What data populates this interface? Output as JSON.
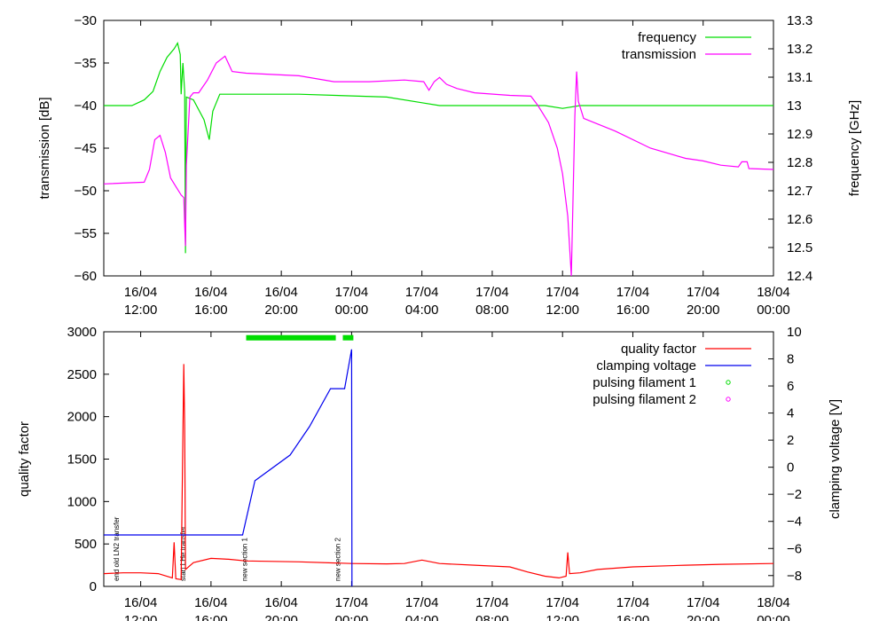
{
  "chart_data": [
    {
      "type": "line",
      "x_ticks": [
        {
          "t": 11,
          "label": [
            "16/04",
            "12:00"
          ]
        },
        {
          "t": 15,
          "label": [
            "16/04",
            "16:00"
          ]
        },
        {
          "t": 19,
          "label": [
            "16/04",
            "20:00"
          ]
        },
        {
          "t": 23,
          "label": [
            "17/04",
            "00:00"
          ]
        },
        {
          "t": 27,
          "label": [
            "17/04",
            "04:00"
          ]
        },
        {
          "t": 31,
          "label": [
            "17/04",
            "08:00"
          ]
        },
        {
          "t": 35,
          "label": [
            "17/04",
            "12:00"
          ]
        },
        {
          "t": 39,
          "label": [
            "17/04",
            "16:00"
          ]
        },
        {
          "t": 43,
          "label": [
            "17/04",
            "20:00"
          ]
        },
        {
          "t": 47,
          "label": [
            "18/04",
            "00:00"
          ]
        }
      ],
      "xlim": [
        8.9,
        47
      ],
      "ylabel": "transmission [dB]",
      "ylim": [
        -60,
        -30
      ],
      "yticks": [
        -30,
        -35,
        -40,
        -45,
        -50,
        -55,
        -60
      ],
      "y2label": "frequency [GHz]",
      "y2lim": [
        12.4,
        13.3
      ],
      "y2ticks": [
        "13.3",
        "13.2",
        "13.1",
        "13",
        "12.9",
        "12.8",
        "12.7",
        "12.6",
        "12.5",
        "12.4"
      ],
      "legend": "top-right",
      "series": [
        {
          "name": "frequency",
          "axis": "y2",
          "color": "#00dd00",
          "points": [
            [
              8.9,
              13.0
            ],
            [
              10.5,
              13.0
            ],
            [
              11.2,
              13.02
            ],
            [
              11.7,
              13.05
            ],
            [
              12.1,
              13.12
            ],
            [
              12.5,
              13.17
            ],
            [
              12.9,
              13.2
            ],
            [
              13.1,
              13.22
            ],
            [
              13.25,
              13.18
            ],
            [
              13.3,
              13.04
            ],
            [
              13.4,
              13.15
            ],
            [
              13.5,
              13.05
            ],
            [
              13.55,
              12.48
            ],
            [
              13.6,
              13.03
            ],
            [
              14.0,
              13.02
            ],
            [
              14.6,
              12.95
            ],
            [
              14.9,
              12.88
            ],
            [
              15.1,
              12.98
            ],
            [
              15.5,
              13.04
            ],
            [
              16,
              13.04
            ],
            [
              20,
              13.04
            ],
            [
              25,
              13.03
            ],
            [
              27,
              13.01
            ],
            [
              28,
              13.0
            ],
            [
              30,
              13.0
            ],
            [
              32,
              13.0
            ],
            [
              34,
              13.0
            ],
            [
              35,
              12.99
            ],
            [
              36,
              13.0
            ],
            [
              40,
              13.0
            ],
            [
              47,
              13.0
            ]
          ]
        },
        {
          "name": "transmission",
          "axis": "y",
          "color": "#ff00ff",
          "points": [
            [
              8.9,
              -49.2
            ],
            [
              11.2,
              -49.0
            ],
            [
              11.5,
              -47.5
            ],
            [
              11.8,
              -44.0
            ],
            [
              12.1,
              -43.5
            ],
            [
              12.4,
              -45.5
            ],
            [
              12.7,
              -48.5
            ],
            [
              13.0,
              -49.5
            ],
            [
              13.3,
              -50.5
            ],
            [
              13.45,
              -50.8
            ],
            [
              13.5,
              -54
            ],
            [
              13.55,
              -56.5
            ],
            [
              13.6,
              -47
            ],
            [
              13.8,
              -39
            ],
            [
              14.0,
              -38.5
            ],
            [
              14.3,
              -38.5
            ],
            [
              14.8,
              -37
            ],
            [
              15.3,
              -35
            ],
            [
              15.8,
              -34.2
            ],
            [
              16.2,
              -36
            ],
            [
              17,
              -36.2
            ],
            [
              20,
              -36.5
            ],
            [
              22,
              -37.2
            ],
            [
              24,
              -37.2
            ],
            [
              26,
              -37.0
            ],
            [
              27.1,
              -37.2
            ],
            [
              27.4,
              -38.2
            ],
            [
              27.7,
              -37.2
            ],
            [
              28.0,
              -36.7
            ],
            [
              28.4,
              -37.5
            ],
            [
              29,
              -38
            ],
            [
              30,
              -38.5
            ],
            [
              32,
              -38.8
            ],
            [
              33.2,
              -38.9
            ],
            [
              33.6,
              -40
            ],
            [
              34.2,
              -42
            ],
            [
              34.7,
              -45
            ],
            [
              35.0,
              -48
            ],
            [
              35.3,
              -53
            ],
            [
              35.5,
              -60
            ],
            [
              35.7,
              -41.2
            ],
            [
              35.8,
              -36.0
            ],
            [
              35.9,
              -39.5
            ],
            [
              36.2,
              -41.5
            ],
            [
              38,
              -43
            ],
            [
              40,
              -45
            ],
            [
              42,
              -46.2
            ],
            [
              43,
              -46.5
            ],
            [
              44,
              -47.0
            ],
            [
              45,
              -47.2
            ],
            [
              45.2,
              -46.6
            ],
            [
              45.5,
              -46.6
            ],
            [
              45.6,
              -47.4
            ],
            [
              47,
              -47.5
            ]
          ]
        }
      ]
    },
    {
      "type": "line",
      "x_ticks": [
        {
          "t": 11,
          "label": [
            "16/04",
            "12:00"
          ]
        },
        {
          "t": 15,
          "label": [
            "16/04",
            "16:00"
          ]
        },
        {
          "t": 19,
          "label": [
            "16/04",
            "20:00"
          ]
        },
        {
          "t": 23,
          "label": [
            "17/04",
            "00:00"
          ]
        },
        {
          "t": 27,
          "label": [
            "17/04",
            "04:00"
          ]
        },
        {
          "t": 31,
          "label": [
            "17/04",
            "08:00"
          ]
        },
        {
          "t": 35,
          "label": [
            "17/04",
            "12:00"
          ]
        },
        {
          "t": 39,
          "label": [
            "17/04",
            "16:00"
          ]
        },
        {
          "t": 43,
          "label": [
            "17/04",
            "20:00"
          ]
        },
        {
          "t": 47,
          "label": [
            "18/04",
            "00:00"
          ]
        }
      ],
      "xlim": [
        8.9,
        47
      ],
      "ylabel": "quality factor",
      "ylim": [
        0,
        3000
      ],
      "yticks": [
        3000,
        2500,
        2000,
        1500,
        1000,
        500,
        0
      ],
      "y2label": "clamping voltage [V]",
      "y2lim": [
        -8.8,
        10
      ],
      "y2ticks": [
        10,
        8,
        6,
        4,
        2,
        0,
        -2,
        -4,
        -6,
        -8
      ],
      "legend": "top-right",
      "series": [
        {
          "name": "quality factor",
          "axis": "y",
          "color": "#ff0000",
          "points": [
            [
              8.9,
              150
            ],
            [
              10,
              160
            ],
            [
              11,
              160
            ],
            [
              12,
              150
            ],
            [
              12.8,
              100
            ],
            [
              12.9,
              520
            ],
            [
              13.0,
              90
            ],
            [
              13.3,
              80
            ],
            [
              13.45,
              2620
            ],
            [
              13.5,
              1900
            ],
            [
              13.55,
              200
            ],
            [
              14,
              280
            ],
            [
              15,
              330
            ],
            [
              16,
              320
            ],
            [
              17,
              300
            ],
            [
              20,
              290
            ],
            [
              23,
              270
            ],
            [
              25,
              265
            ],
            [
              26,
              270
            ],
            [
              27,
              310
            ],
            [
              28,
              270
            ],
            [
              30,
              250
            ],
            [
              32,
              230
            ],
            [
              33,
              170
            ],
            [
              34,
              120
            ],
            [
              34.8,
              100
            ],
            [
              35.2,
              120
            ],
            [
              35.3,
              400
            ],
            [
              35.4,
              150
            ],
            [
              36,
              160
            ],
            [
              37,
              200
            ],
            [
              39,
              230
            ],
            [
              42,
              250
            ],
            [
              44,
              260
            ],
            [
              47,
              270
            ]
          ]
        },
        {
          "name": "clamping voltage",
          "axis": "y2",
          "color": "#0000ee",
          "points": [
            [
              8.9,
              -5.0
            ],
            [
              16.8,
              -5.0
            ],
            [
              17.5,
              -1.0
            ],
            [
              19.5,
              0.9
            ],
            [
              20.6,
              3.0
            ],
            [
              21.8,
              5.8
            ],
            [
              22.6,
              5.8
            ],
            [
              23.0,
              8.7
            ],
            [
              23.02,
              -8.8
            ]
          ]
        },
        {
          "name": "pulsing filament 1",
          "axis": "y",
          "color": "#00dd00",
          "segments": [
            [
              17,
              22.1
            ],
            [
              22.5,
              23.1
            ]
          ],
          "y": 2930
        },
        {
          "name": "pulsing filament 2",
          "axis": "y",
          "color": "#ff00ff"
        }
      ],
      "annotations": [
        {
          "t": 9.6,
          "text": "end old LN2 transfer"
        },
        {
          "t": 13.4,
          "text": "start LHe transfer"
        },
        {
          "t": 16.9,
          "text": "new section 1"
        },
        {
          "t": 22.2,
          "text": "new section 2"
        }
      ]
    }
  ]
}
